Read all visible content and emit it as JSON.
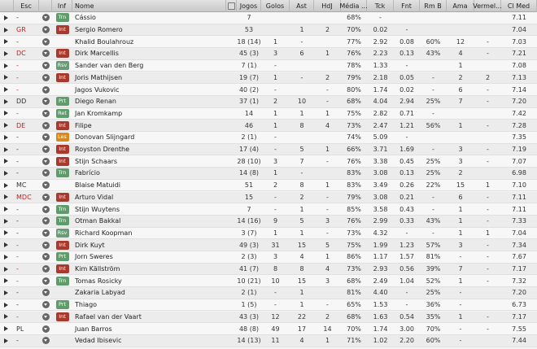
{
  "table": {
    "headers": [
      "Esc",
      "Inf",
      "Nome",
      "Jogos",
      "Golos",
      "Ast",
      "HdJ",
      "Média ...",
      "Tck",
      "Fnt",
      "Rm B",
      "Ama",
      "Vermel...",
      "Cl Med"
    ],
    "inf_colors": {
      "Trn": "#5f9c6c",
      "Int": "#a8392c",
      "Rsv": "#6b9a78",
      "Prt": "#5f9c6c",
      "Ret": "#5f9c6c",
      "Les": "#d8891d"
    },
    "rows": [
      {
        "esc": "-",
        "esc_color": "#333333",
        "inf": "Trn",
        "cells": [
          "Cássio",
          "7",
          null,
          null,
          null,
          "68%",
          "-",
          null,
          null,
          null,
          null,
          "7.11"
        ]
      },
      {
        "esc": "GR",
        "esc_color": "#c81e1e",
        "inf": "Int",
        "cells": [
          "Sergio Romero",
          "53",
          null,
          "1",
          "2",
          "70%",
          "0.02",
          "-",
          null,
          null,
          null,
          "7.04"
        ]
      },
      {
        "esc": "-",
        "esc_color": "#333333",
        "inf": null,
        "cells": [
          "Khalid Boulahrouz",
          "18 (14)",
          "1",
          "-",
          null,
          "77%",
          "2.92",
          "0.08",
          "60%",
          "12",
          "-",
          "7.03"
        ]
      },
      {
        "esc": "DC",
        "esc_color": "#c81e1e",
        "inf": "Int",
        "cells": [
          "Dirk Marcellis",
          "45 (3)",
          "3",
          "6",
          "1",
          "76%",
          "2.23",
          "0.13",
          "43%",
          "4",
          "-",
          "7.21"
        ]
      },
      {
        "esc": "-",
        "esc_color": "#c81e1e",
        "inf": "Rsv",
        "cells": [
          "Sander van den Berg",
          "7 (1)",
          "-",
          null,
          null,
          "78%",
          "1.33",
          "-",
          null,
          "1",
          null,
          "7.08"
        ]
      },
      {
        "esc": "-",
        "esc_color": "#c81e1e",
        "inf": "Int",
        "cells": [
          "Joris Mathijsen",
          "19 (7)",
          "1",
          "-",
          "2",
          "79%",
          "2.18",
          "0.05",
          "-",
          "2",
          "2",
          "7.13"
        ]
      },
      {
        "esc": "-",
        "esc_color": "#c81e1e",
        "inf": null,
        "cells": [
          "Jagos Vukovic",
          "40 (2)",
          "-",
          null,
          "-",
          "80%",
          "1.74",
          "0.02",
          "-",
          "6",
          "-",
          "7.14"
        ]
      },
      {
        "esc": "DD",
        "esc_color": "#333333",
        "inf": "Prt",
        "cells": [
          "Diego Renan",
          "37 (1)",
          "2",
          "10",
          "-",
          "68%",
          "4.04",
          "2.94",
          "25%",
          "7",
          "-",
          "7.20"
        ]
      },
      {
        "esc": "-",
        "esc_color": "#c81e1e",
        "inf": "Ret",
        "cells": [
          "Jan Kromkamp",
          "14",
          "1",
          "1",
          "1",
          "75%",
          "2.82",
          "0.71",
          "-",
          null,
          null,
          "7.42"
        ]
      },
      {
        "esc": "DE",
        "esc_color": "#c81e1e",
        "inf": "Int",
        "cells": [
          "Filipe",
          "46",
          "1",
          "8",
          "4",
          "73%",
          "2.47",
          "1.21",
          "56%",
          "1",
          "-",
          "7.28"
        ]
      },
      {
        "esc": "-",
        "esc_color": "#333333",
        "inf": "Les",
        "cells": [
          "Donovan Slijngard",
          "2 (1)",
          "-",
          null,
          null,
          "74%",
          "5.09",
          "-",
          null,
          null,
          null,
          "7.35"
        ]
      },
      {
        "esc": "-",
        "esc_color": "#333333",
        "inf": "Int",
        "cells": [
          "Royston Drenthe",
          "17 (4)",
          "-",
          "5",
          "1",
          "66%",
          "3.71",
          "1.69",
          "-",
          "3",
          "-",
          "7.19"
        ]
      },
      {
        "esc": "-",
        "esc_color": "#333333",
        "inf": "Int",
        "cells": [
          "Stijn Schaars",
          "28 (10)",
          "3",
          "7",
          "-",
          "76%",
          "3.38",
          "0.45",
          "25%",
          "3",
          "-",
          "7.07"
        ]
      },
      {
        "esc": "-",
        "esc_color": "#333333",
        "inf": "Trn",
        "cells": [
          "Fabrício",
          "14 (8)",
          "1",
          "-",
          null,
          "83%",
          "3.08",
          "0.13",
          "25%",
          "2",
          null,
          "6.98"
        ]
      },
      {
        "esc": "MC",
        "esc_color": "#333333",
        "inf": null,
        "cells": [
          "Blaise Matuidi",
          "51",
          "2",
          "8",
          "1",
          "83%",
          "3.49",
          "0.26",
          "22%",
          "15",
          "1",
          "7.10"
        ]
      },
      {
        "esc": "MDC",
        "esc_color": "#c81e1e",
        "inf": "Int",
        "cells": [
          "Arturo Vidal",
          "15",
          "-",
          "2",
          "-",
          "79%",
          "3.08",
          "0.21",
          "-",
          "6",
          "-",
          "7.11"
        ]
      },
      {
        "esc": "-",
        "esc_color": "#333333",
        "inf": "Trn",
        "cells": [
          "Stijn Wuytens",
          "7",
          "-",
          "1",
          "-",
          "85%",
          "3.58",
          "0.43",
          "-",
          "1",
          "-",
          "7.11"
        ]
      },
      {
        "esc": "-",
        "esc_color": "#333333",
        "inf": "Trn",
        "cells": [
          "Otman Bakkal",
          "14 (16)",
          "9",
          "5",
          "3",
          "76%",
          "2.99",
          "0.33",
          "43%",
          "1",
          "-",
          "7.33"
        ]
      },
      {
        "esc": "-",
        "esc_color": "#333333",
        "inf": "Rsv",
        "cells": [
          "Richard Koopman",
          "3 (7)",
          "1",
          "1",
          "-",
          "73%",
          "4.32",
          "-",
          "-",
          "1",
          "1",
          "7.04"
        ]
      },
      {
        "esc": "-",
        "esc_color": "#c81e1e",
        "inf": "Int",
        "cells": [
          "Dirk Kuyt",
          "49 (3)",
          "31",
          "15",
          "5",
          "75%",
          "1.99",
          "1.23",
          "57%",
          "3",
          "-",
          "7.34"
        ]
      },
      {
        "esc": "-",
        "esc_color": "#c81e1e",
        "inf": "Prt",
        "cells": [
          "Jorn Sweres",
          "2 (3)",
          "3",
          "4",
          "1",
          "86%",
          "1.17",
          "1.57",
          "81%",
          "-",
          "-",
          "7.67"
        ]
      },
      {
        "esc": "-",
        "esc_color": "#c81e1e",
        "inf": "Int",
        "cells": [
          "Kim Källström",
          "41 (7)",
          "8",
          "8",
          "4",
          "73%",
          "2.93",
          "0.56",
          "39%",
          "7",
          "-",
          "7.17"
        ]
      },
      {
        "esc": "-",
        "esc_color": "#c81e1e",
        "inf": "Trn",
        "cells": [
          "Tomas Rosicky",
          "10 (21)",
          "10",
          "15",
          "3",
          "68%",
          "2.49",
          "1.04",
          "52%",
          "1",
          "-",
          "7.32"
        ]
      },
      {
        "esc": "-",
        "esc_color": "#333333",
        "inf": null,
        "cells": [
          "Zakaria Labyad",
          "2 (1)",
          "-",
          "1",
          null,
          "81%",
          "4.40",
          "-",
          "25%",
          "-",
          null,
          "7.20"
        ]
      },
      {
        "esc": "-",
        "esc_color": "#333333",
        "inf": "Prt",
        "cells": [
          "Thiago",
          "1 (5)",
          "-",
          "1",
          "-",
          "65%",
          "1.53",
          "-",
          "36%",
          "-",
          null,
          "6.73"
        ]
      },
      {
        "esc": "-",
        "esc_color": "#c81e1e",
        "inf": "Int",
        "cells": [
          "Rafael van der Vaart",
          "43 (3)",
          "12",
          "22",
          "2",
          "68%",
          "1.63",
          "0.54",
          "35%",
          "1",
          "-",
          "7.17"
        ]
      },
      {
        "esc": "PL",
        "esc_color": "#333333",
        "inf": null,
        "cells": [
          "Juan Barros",
          "48 (8)",
          "49",
          "17",
          "14",
          "70%",
          "1.74",
          "3.00",
          "70%",
          "-",
          "-",
          "7.55"
        ]
      },
      {
        "esc": "-",
        "esc_color": "#333333",
        "inf": null,
        "cells": [
          "Vedad Ibisevic",
          "14 (13)",
          "11",
          "4",
          "1",
          "71%",
          "1.02",
          "2.20",
          "60%",
          "-",
          null,
          "7.44"
        ]
      }
    ]
  }
}
